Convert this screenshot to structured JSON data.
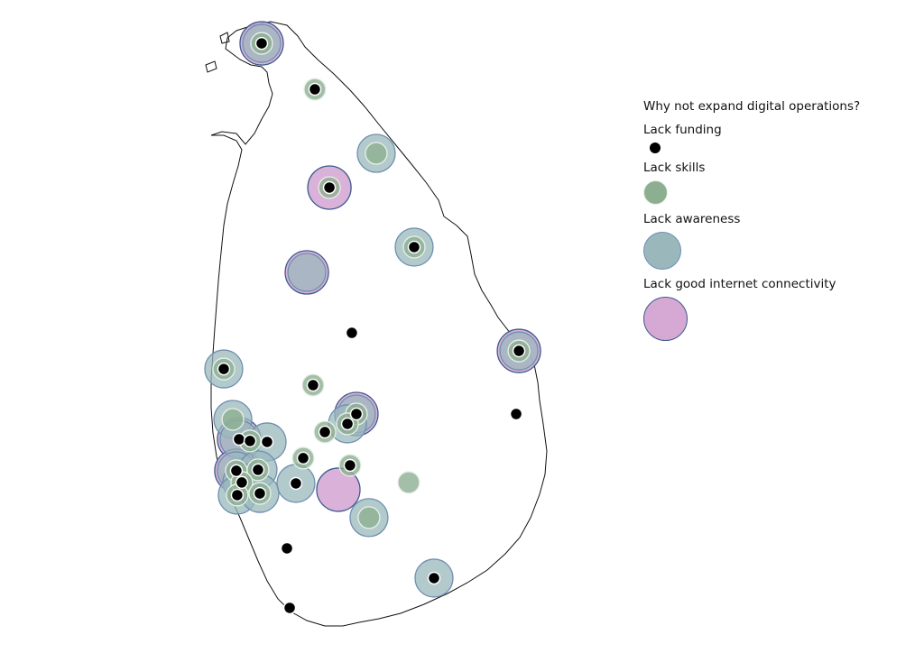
{
  "legend": {
    "title": "Why not expand digital operations?",
    "items": [
      {
        "key": "funding",
        "label": "Lack funding",
        "color": "#000000",
        "stroke": "#ffffff"
      },
      {
        "key": "skills",
        "label": "Lack skills",
        "color": "#8daf91",
        "stroke": "#e8f0e8"
      },
      {
        "key": "awareness",
        "label": "Lack awareness",
        "color": "#9ab8bc",
        "stroke": "#6f8fb0"
      },
      {
        "key": "connectivity",
        "label": "Lack good internet connectivity",
        "color": "#d6a8d4",
        "stroke": "#3c5a8c"
      }
    ]
  },
  "locations": [
    {
      "lon": 80.007,
      "lat": 9.695,
      "reasons": [
        "connectivity",
        "awareness",
        "skills",
        "funding"
      ]
    },
    {
      "lon": 80.358,
      "lat": 9.397,
      "reasons": [
        "skills",
        "funding"
      ]
    },
    {
      "lon": 80.763,
      "lat": 8.982,
      "reasons": [
        "awareness",
        "skills"
      ]
    },
    {
      "lon": 80.454,
      "lat": 8.76,
      "reasons": [
        "connectivity",
        "skills",
        "funding"
      ]
    },
    {
      "lon": 81.013,
      "lat": 8.374,
      "reasons": [
        "awareness",
        "skills",
        "funding"
      ]
    },
    {
      "lon": 80.305,
      "lat": 8.21,
      "reasons": [
        "connectivity",
        "awareness"
      ]
    },
    {
      "lon": 80.602,
      "lat": 7.818,
      "reasons": [
        "funding"
      ]
    },
    {
      "lon": 81.704,
      "lat": 7.701,
      "reasons": [
        "connectivity",
        "awareness",
        "skills",
        "funding"
      ]
    },
    {
      "lon": 79.757,
      "lat": 7.584,
      "reasons": [
        "awareness",
        "skills",
        "funding"
      ]
    },
    {
      "lon": 80.346,
      "lat": 7.479,
      "reasons": [
        "skills",
        "funding"
      ]
    },
    {
      "lon": 80.632,
      "lat": 7.292,
      "reasons": [
        "connectivity",
        "awareness",
        "skills",
        "funding"
      ]
    },
    {
      "lon": 81.686,
      "lat": 7.292,
      "reasons": [
        "funding"
      ]
    },
    {
      "lon": 80.573,
      "lat": 7.228,
      "reasons": [
        "awareness",
        "skills",
        "funding"
      ]
    },
    {
      "lon": 80.424,
      "lat": 7.175,
      "reasons": [
        "skills",
        "funding"
      ]
    },
    {
      "lon": 79.817,
      "lat": 7.257,
      "reasons": [
        "awareness",
        "skills"
      ]
    },
    {
      "lon": 79.858,
      "lat": 7.128,
      "reasons": [
        "connectivity",
        "awareness",
        "funding"
      ]
    },
    {
      "lon": 79.93,
      "lat": 7.117,
      "reasons": [
        "skills",
        "funding"
      ]
    },
    {
      "lon": 80.043,
      "lat": 7.111,
      "reasons": [
        "awareness",
        "funding"
      ]
    },
    {
      "lon": 80.281,
      "lat": 7.006,
      "reasons": [
        "skills",
        "funding"
      ]
    },
    {
      "lon": 80.59,
      "lat": 6.959,
      "reasons": [
        "skills",
        "funding"
      ]
    },
    {
      "lon": 80.977,
      "lat": 6.848,
      "reasons": [
        "skills"
      ]
    },
    {
      "lon": 80.513,
      "lat": 6.801,
      "reasons": [
        "connectivity"
      ]
    },
    {
      "lon": 80.233,
      "lat": 6.842,
      "reasons": [
        "awareness",
        "funding"
      ]
    },
    {
      "lon": 79.84,
      "lat": 6.924,
      "reasons": [
        "connectivity",
        "awareness",
        "skills",
        "funding"
      ]
    },
    {
      "lon": 79.983,
      "lat": 6.93,
      "reasons": [
        "awareness",
        "skills",
        "funding"
      ]
    },
    {
      "lon": 79.876,
      "lat": 6.848,
      "reasons": [
        "awareness",
        "skills",
        "funding"
      ]
    },
    {
      "lon": 79.846,
      "lat": 6.766,
      "reasons": [
        "awareness",
        "skills",
        "funding"
      ]
    },
    {
      "lon": 79.995,
      "lat": 6.777,
      "reasons": [
        "awareness",
        "skills",
        "funding"
      ]
    },
    {
      "lon": 80.715,
      "lat": 6.62,
      "reasons": [
        "awareness",
        "skills"
      ]
    },
    {
      "lon": 80.174,
      "lat": 6.421,
      "reasons": [
        "funding"
      ]
    },
    {
      "lon": 81.144,
      "lat": 6.228,
      "reasons": [
        "awareness",
        "funding"
      ]
    },
    {
      "lon": 80.192,
      "lat": 6.035,
      "reasons": [
        "funding"
      ]
    }
  ]
}
